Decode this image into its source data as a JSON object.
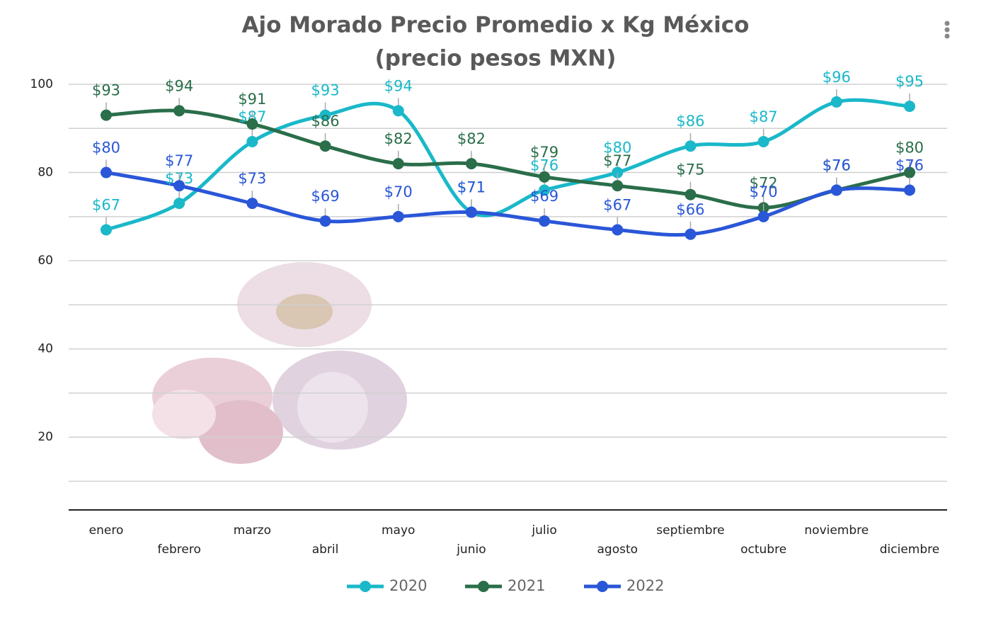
{
  "chart_data": {
    "type": "line",
    "title": "Ajo Morado Precio Promedio x Kg México",
    "subtitle": "(precio pesos MXN)",
    "categories": [
      "enero",
      "febrero",
      "marzo",
      "abril",
      "mayo",
      "junio",
      "julio",
      "agosto",
      "septiembre",
      "octubre",
      "noviembre",
      "diciembre"
    ],
    "series": [
      {
        "name": "2020",
        "color": "#1ab8c9",
        "values": [
          67,
          73,
          87,
          93,
          94,
          71,
          76,
          80,
          86,
          87,
          96,
          95
        ],
        "value_labels": [
          "$67",
          "$73",
          "$87",
          "$93",
          "$94",
          "$71",
          "$76",
          "$80",
          "$86",
          "$87",
          "$96",
          "$95"
        ]
      },
      {
        "name": "2021",
        "color": "#2a6e4a",
        "values": [
          93,
          94,
          91,
          86,
          82,
          82,
          79,
          77,
          75,
          72,
          76,
          80
        ],
        "value_labels": [
          "$93",
          "$94",
          "$91",
          "$86",
          "$82",
          "$82",
          "$79",
          "$77",
          "$75",
          "$72",
          "$76",
          "$80"
        ]
      },
      {
        "name": "2022",
        "color": "#2a56d8",
        "values": [
          80,
          77,
          73,
          69,
          70,
          71,
          69,
          67,
          66,
          70,
          76,
          76
        ],
        "value_labels": [
          "$80",
          "$77",
          "$73",
          "$69",
          "$70",
          "$71",
          "$69",
          "$67",
          "$66",
          "$70",
          "$76",
          "$76"
        ]
      }
    ],
    "ylim": [
      3.5,
      100
    ],
    "yticks": [
      20,
      40,
      60,
      80,
      100
    ],
    "minor_gridlines": [
      10,
      30,
      50,
      70,
      90
    ],
    "grid": true,
    "smooth": true,
    "legend": "bottom"
  }
}
